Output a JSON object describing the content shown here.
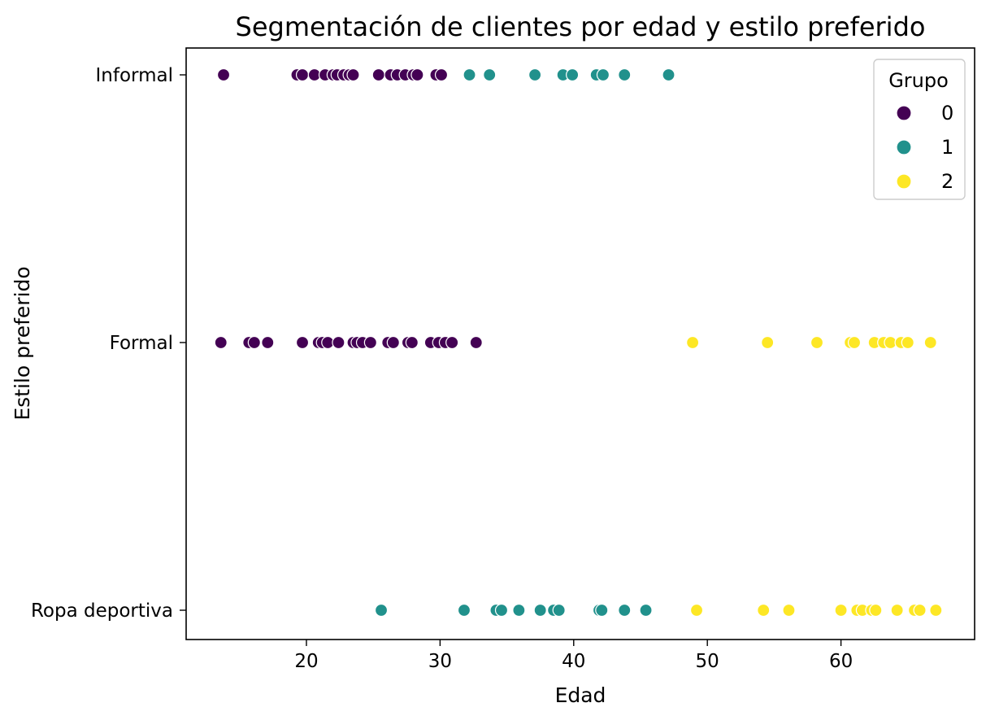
{
  "chart_data": {
    "type": "scatter",
    "title": "Segmentación de clientes por edad y estilo preferido",
    "xlabel": "Edad",
    "ylabel": "Estilo preferido",
    "xlim": [
      11,
      70
    ],
    "xticks": [
      20,
      30,
      40,
      50,
      60
    ],
    "categories": [
      "Informal",
      "Formal",
      "Ropa deportiva"
    ],
    "grid": false,
    "legend": {
      "title": "Grupo",
      "placement": "top-right",
      "entries": [
        "0",
        "1",
        "2"
      ]
    },
    "series": [
      {
        "name": "0",
        "color": "#440154",
        "points": [
          {
            "x": 13.8,
            "y": "Informal"
          },
          {
            "x": 19.3,
            "y": "Informal"
          },
          {
            "x": 19.7,
            "y": "Informal"
          },
          {
            "x": 20.6,
            "y": "Informal"
          },
          {
            "x": 21.4,
            "y": "Informal"
          },
          {
            "x": 22.0,
            "y": "Informal"
          },
          {
            "x": 22.3,
            "y": "Informal"
          },
          {
            "x": 22.8,
            "y": "Informal"
          },
          {
            "x": 23.2,
            "y": "Informal"
          },
          {
            "x": 23.5,
            "y": "Informal"
          },
          {
            "x": 25.4,
            "y": "Informal"
          },
          {
            "x": 26.3,
            "y": "Informal"
          },
          {
            "x": 26.8,
            "y": "Informal"
          },
          {
            "x": 27.4,
            "y": "Informal"
          },
          {
            "x": 28.0,
            "y": "Informal"
          },
          {
            "x": 28.3,
            "y": "Informal"
          },
          {
            "x": 29.7,
            "y": "Informal"
          },
          {
            "x": 30.1,
            "y": "Informal"
          },
          {
            "x": 13.6,
            "y": "Formal"
          },
          {
            "x": 15.7,
            "y": "Formal"
          },
          {
            "x": 16.1,
            "y": "Formal"
          },
          {
            "x": 17.1,
            "y": "Formal"
          },
          {
            "x": 19.7,
            "y": "Formal"
          },
          {
            "x": 20.9,
            "y": "Formal"
          },
          {
            "x": 21.2,
            "y": "Formal"
          },
          {
            "x": 21.6,
            "y": "Formal"
          },
          {
            "x": 22.4,
            "y": "Formal"
          },
          {
            "x": 23.5,
            "y": "Formal"
          },
          {
            "x": 23.8,
            "y": "Formal"
          },
          {
            "x": 24.2,
            "y": "Formal"
          },
          {
            "x": 24.8,
            "y": "Formal"
          },
          {
            "x": 26.1,
            "y": "Formal"
          },
          {
            "x": 26.5,
            "y": "Formal"
          },
          {
            "x": 27.6,
            "y": "Formal"
          },
          {
            "x": 27.9,
            "y": "Formal"
          },
          {
            "x": 29.3,
            "y": "Formal"
          },
          {
            "x": 29.9,
            "y": "Formal"
          },
          {
            "x": 30.4,
            "y": "Formal"
          },
          {
            "x": 30.9,
            "y": "Formal"
          },
          {
            "x": 32.7,
            "y": "Formal"
          }
        ]
      },
      {
        "name": "1",
        "color": "#21918c",
        "points": [
          {
            "x": 32.2,
            "y": "Informal"
          },
          {
            "x": 33.7,
            "y": "Informal"
          },
          {
            "x": 37.1,
            "y": "Informal"
          },
          {
            "x": 39.2,
            "y": "Informal"
          },
          {
            "x": 39.9,
            "y": "Informal"
          },
          {
            "x": 41.7,
            "y": "Informal"
          },
          {
            "x": 42.2,
            "y": "Informal"
          },
          {
            "x": 43.8,
            "y": "Informal"
          },
          {
            "x": 47.1,
            "y": "Informal"
          },
          {
            "x": 25.6,
            "y": "Ropa deportiva"
          },
          {
            "x": 31.8,
            "y": "Ropa deportiva"
          },
          {
            "x": 34.2,
            "y": "Ropa deportiva"
          },
          {
            "x": 34.6,
            "y": "Ropa deportiva"
          },
          {
            "x": 35.9,
            "y": "Ropa deportiva"
          },
          {
            "x": 37.5,
            "y": "Ropa deportiva"
          },
          {
            "x": 38.5,
            "y": "Ropa deportiva"
          },
          {
            "x": 38.9,
            "y": "Ropa deportiva"
          },
          {
            "x": 41.9,
            "y": "Ropa deportiva"
          },
          {
            "x": 42.1,
            "y": "Ropa deportiva"
          },
          {
            "x": 43.8,
            "y": "Ropa deportiva"
          },
          {
            "x": 45.4,
            "y": "Ropa deportiva"
          }
        ]
      },
      {
        "name": "2",
        "color": "#fde725",
        "points": [
          {
            "x": 48.9,
            "y": "Formal"
          },
          {
            "x": 54.5,
            "y": "Formal"
          },
          {
            "x": 58.2,
            "y": "Formal"
          },
          {
            "x": 60.7,
            "y": "Formal"
          },
          {
            "x": 61.0,
            "y": "Formal"
          },
          {
            "x": 62.5,
            "y": "Formal"
          },
          {
            "x": 63.2,
            "y": "Formal"
          },
          {
            "x": 63.7,
            "y": "Formal"
          },
          {
            "x": 64.5,
            "y": "Formal"
          },
          {
            "x": 65.0,
            "y": "Formal"
          },
          {
            "x": 66.7,
            "y": "Formal"
          },
          {
            "x": 49.2,
            "y": "Ropa deportiva"
          },
          {
            "x": 54.2,
            "y": "Ropa deportiva"
          },
          {
            "x": 56.1,
            "y": "Ropa deportiva"
          },
          {
            "x": 60.0,
            "y": "Ropa deportiva"
          },
          {
            "x": 61.2,
            "y": "Ropa deportiva"
          },
          {
            "x": 61.6,
            "y": "Ropa deportiva"
          },
          {
            "x": 62.3,
            "y": "Ropa deportiva"
          },
          {
            "x": 62.6,
            "y": "Ropa deportiva"
          },
          {
            "x": 64.2,
            "y": "Ropa deportiva"
          },
          {
            "x": 65.5,
            "y": "Ropa deportiva"
          },
          {
            "x": 65.9,
            "y": "Ropa deportiva"
          },
          {
            "x": 67.1,
            "y": "Ropa deportiva"
          }
        ]
      }
    ]
  }
}
